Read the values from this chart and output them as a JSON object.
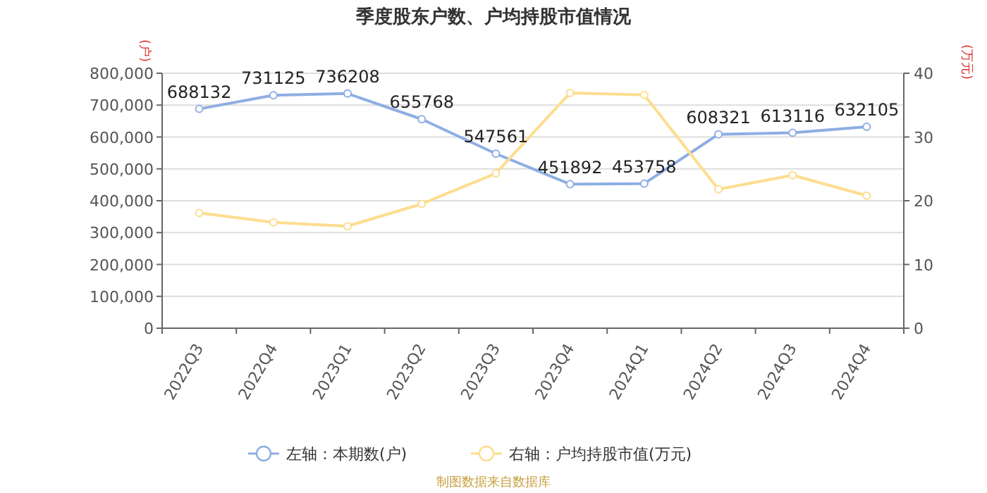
{
  "chart_data": {
    "type": "line",
    "title": "季度股东户数、户均持股市值情况",
    "categories": [
      "2022Q3",
      "2022Q4",
      "2023Q1",
      "2023Q2",
      "2023Q3",
      "2023Q4",
      "2024Q1",
      "2024Q2",
      "2024Q3",
      "2024Q4"
    ],
    "series": [
      {
        "name": "左轴：本期数(户)",
        "color": "#8eaee3",
        "values": [
          688132,
          731125,
          736208,
          655768,
          547561,
          451892,
          453758,
          608321,
          613116,
          632105
        ],
        "value_labels": [
          "688132",
          "731125",
          "736208",
          "655768",
          "547561",
          "451892",
          "453758",
          "608321",
          "613116",
          "632105"
        ]
      },
      {
        "name": "右轴：户均持股市值(万元)",
        "color": "#fddd8e",
        "axis": "y2",
        "values": [
          18.1,
          16.6,
          16.0,
          19.5,
          24.3,
          36.9,
          36.6,
          21.8,
          24.0,
          20.8
        ]
      }
    ],
    "ylabel": "(户)",
    "y2label": "(万元)",
    "ylim": [
      0,
      800000
    ],
    "yticks": [
      {
        "value": 0,
        "label": "0"
      },
      {
        "value": 100000,
        "label": "100,000"
      },
      {
        "value": 200000,
        "label": "200,000"
      },
      {
        "value": 300000,
        "label": "300,000"
      },
      {
        "value": 400000,
        "label": "400,000"
      },
      {
        "value": 500000,
        "label": "500,000"
      },
      {
        "value": 600000,
        "label": "600,000"
      },
      {
        "value": 700000,
        "label": "700,000"
      },
      {
        "value": 800000,
        "label": "800,000"
      }
    ],
    "y2lim": [
      0,
      40
    ],
    "y2ticks": [
      0,
      10,
      20,
      30,
      40
    ],
    "grid": "y",
    "legend": "bottom",
    "marker": "circle",
    "line_style": "solid",
    "annotations": [
      "制图数据来自数据库"
    ]
  }
}
